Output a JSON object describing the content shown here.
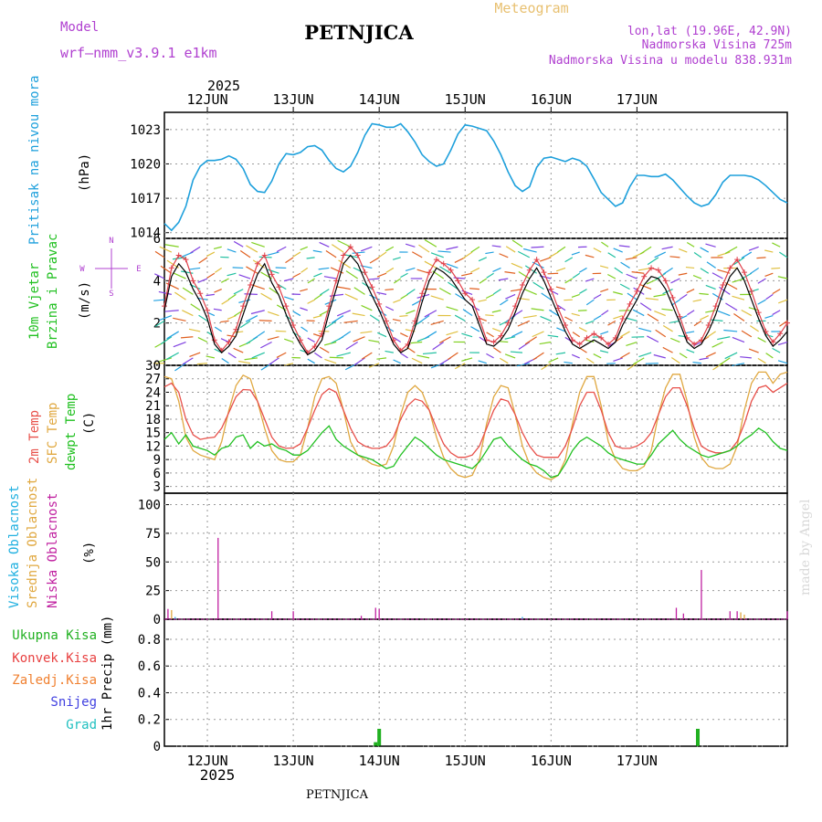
{
  "header": {
    "model_label": "Model",
    "model_name": "wrf—nmm_v3.9.1  e1km",
    "station": "PETNJICA",
    "meteogram_label": "Meteogram",
    "lonlat": "lon,lat (19.96E, 42.9N)",
    "elevation": "Nadmorska Visina 725m",
    "model_elevation": "Nadmorska Visina u modelu 838.931m",
    "year_top": "2025",
    "year_bottom": "2025",
    "footer_station": "PETNJICA",
    "credit": "made by Angel"
  },
  "colors": {
    "pressure": "#1ea0dc",
    "wind_speed": "#000000",
    "wind_gust": "#e0404a",
    "temp_2m": "#e8504a",
    "temp_sfc": "#e0a840",
    "dewpoint": "#20c020",
    "cloud_high": "#20b0e0",
    "cloud_mid": "#e0a840",
    "cloud_low": "#c020a0",
    "precip_total": "#20b020",
    "precip_conv": "#e84040",
    "precip_frozen": "#f08030",
    "snow": "#4040e0",
    "hail": "#20c0c0",
    "title_purple": "#b040d0"
  },
  "chart_data": [
    {
      "type": "line",
      "id": "pressure",
      "ylabel_side": "Pritisak na nivou mora",
      "unit": "(hPa)",
      "x_day_labels": [
        "12JUN",
        "13JUN",
        "14JUN",
        "15JUN",
        "16JUN",
        "17JUN"
      ],
      "yticks": [
        "1014",
        "1017",
        "1020",
        "1023"
      ],
      "ylim": [
        1013.5,
        1024.5
      ],
      "x_hours": [
        0,
        2,
        4,
        6,
        8,
        10,
        12,
        14,
        16,
        18,
        20,
        22,
        24,
        26,
        28,
        30,
        32,
        34,
        36,
        38,
        40,
        42,
        44,
        46,
        48,
        50,
        52,
        54,
        56,
        58,
        60,
        62,
        64,
        66,
        68,
        70,
        72,
        74,
        76,
        78,
        80,
        82,
        84,
        86,
        88,
        90,
        92,
        94,
        96,
        98,
        100,
        102,
        104,
        106,
        108,
        110,
        112,
        114,
        116,
        118,
        120,
        122,
        124,
        126,
        128,
        130,
        132,
        134,
        136,
        138,
        140,
        142,
        144,
        146,
        148,
        150,
        152,
        154,
        156,
        158,
        160,
        162,
        164,
        166,
        168,
        170,
        172,
        174
      ],
      "series": [
        {
          "values": [
            1014.8,
            1014.2,
            1014.9,
            1016.3,
            1018.6,
            1019.8,
            1020.3,
            1020.3,
            1020.4,
            1020.7,
            1020.4,
            1019.6,
            1018.2,
            1017.6,
            1017.5,
            1018.5,
            1020.0,
            1020.9,
            1020.8,
            1021.0,
            1021.5,
            1021.6,
            1021.2,
            1020.3,
            1019.6,
            1019.3,
            1019.8,
            1021.0,
            1022.5,
            1023.5,
            1023.4,
            1023.2,
            1023.2,
            1023.5,
            1022.8,
            1021.9,
            1020.8,
            1020.2,
            1019.8,
            1020.0,
            1021.2,
            1022.6,
            1023.4,
            1023.3,
            1023.1,
            1022.9,
            1022.0,
            1020.8,
            1019.3,
            1018.1,
            1017.6,
            1018.0,
            1019.7,
            1020.5,
            1020.6,
            1020.4,
            1020.2,
            1020.5,
            1020.3,
            1019.8,
            1018.7,
            1017.5,
            1016.9,
            1016.3,
            1016.6,
            1018.0,
            1019.0,
            1019.0,
            1018.9,
            1018.9,
            1019.1,
            1018.6,
            1017.9,
            1017.2,
            1016.6,
            1016.3,
            1016.5,
            1017.3,
            1018.4,
            1019.0,
            1019.0,
            1019.0,
            1018.9,
            1018.6,
            1018.1,
            1017.5,
            1016.9,
            1016.6
          ]
        }
      ]
    },
    {
      "type": "line",
      "id": "wind",
      "ylabel_side": [
        "10m Vjetar",
        "Brzina i Pravac"
      ],
      "unit": "(m/s)",
      "compass": {
        "n": "N",
        "s": "S",
        "e": "E",
        "w": "W"
      },
      "yticks": [
        "0",
        "2",
        "4",
        "6"
      ],
      "ylim": [
        0,
        6
      ],
      "x_hours": [
        0,
        2,
        4,
        6,
        8,
        10,
        12,
        14,
        16,
        18,
        20,
        22,
        24,
        26,
        28,
        30,
        32,
        34,
        36,
        38,
        40,
        42,
        44,
        46,
        48,
        50,
        52,
        54,
        56,
        58,
        60,
        62,
        64,
        66,
        68,
        70,
        72,
        74,
        76,
        78,
        80,
        82,
        84,
        86,
        88,
        90,
        92,
        94,
        96,
        98,
        100,
        102,
        104,
        106,
        108,
        110,
        112,
        114,
        116,
        118,
        120,
        122,
        124,
        126,
        128,
        130,
        132,
        134,
        136,
        138,
        140,
        142,
        144,
        146,
        148,
        150,
        152,
        154,
        156,
        158,
        160,
        162,
        164,
        166,
        168,
        170,
        172,
        174
      ],
      "series": [
        {
          "name": "speed",
          "values": [
            2.6,
            4.2,
            4.8,
            4.4,
            3.6,
            3.0,
            2.2,
            1.0,
            0.6,
            0.9,
            1.4,
            2.4,
            3.4,
            4.3,
            4.8,
            3.9,
            3.3,
            2.4,
            1.6,
            1.0,
            0.5,
            0.7,
            1.2,
            2.5,
            3.6,
            4.8,
            5.2,
            4.8,
            4.0,
            3.3,
            2.6,
            1.8,
            1.0,
            0.6,
            0.8,
            1.8,
            3.0,
            4.0,
            4.6,
            4.4,
            4.1,
            3.6,
            3.1,
            2.8,
            1.9,
            1.0,
            0.9,
            1.2,
            1.7,
            2.5,
            3.4,
            4.1,
            4.6,
            4.0,
            3.2,
            2.4,
            1.6,
            1.0,
            0.8,
            1.0,
            1.2,
            1.0,
            0.8,
            1.1,
            1.9,
            2.5,
            3.1,
            3.8,
            4.2,
            4.1,
            3.6,
            2.8,
            2.0,
            1.1,
            0.8,
            1.0,
            1.6,
            2.4,
            3.4,
            4.2,
            4.6,
            4.0,
            3.1,
            2.2,
            1.4,
            0.9,
            1.2,
            1.6
          ]
        },
        {
          "name": "gust",
          "values": [
            2.8,
            4.6,
            5.2,
            5.0,
            4.0,
            3.4,
            2.6,
            1.2,
            0.7,
            1.1,
            1.7,
            2.8,
            3.8,
            4.8,
            5.2,
            4.3,
            3.7,
            2.8,
            1.9,
            1.2,
            0.6,
            0.9,
            1.5,
            2.8,
            4.0,
            5.2,
            5.6,
            5.2,
            4.4,
            3.7,
            2.9,
            2.1,
            1.2,
            0.7,
            1.0,
            2.1,
            3.4,
            4.4,
            5.0,
            4.8,
            4.5,
            4.0,
            3.4,
            3.1,
            2.2,
            1.2,
            1.1,
            1.4,
            2.0,
            2.8,
            3.8,
            4.5,
            5.0,
            4.4,
            3.6,
            2.7,
            1.9,
            1.2,
            1.0,
            1.3,
            1.5,
            1.3,
            1.0,
            1.3,
            2.2,
            2.9,
            3.5,
            4.2,
            4.6,
            4.5,
            4.0,
            3.2,
            2.3,
            1.3,
            1.0,
            1.2,
            1.9,
            2.8,
            3.8,
            4.6,
            5.0,
            4.4,
            3.5,
            2.5,
            1.6,
            1.1,
            1.5,
            2.0
          ]
        }
      ]
    },
    {
      "type": "line",
      "id": "temperature",
      "ylabel_side": [
        "2m Temp",
        "SFC Temp",
        "dewpt Temp"
      ],
      "unit": "(C)",
      "yticks": [
        "3",
        "6",
        "9",
        "12",
        "15",
        "18",
        "21",
        "24",
        "27",
        "30"
      ],
      "ylim": [
        1.5,
        30
      ],
      "x_hours": [
        0,
        2,
        4,
        6,
        8,
        10,
        12,
        14,
        16,
        18,
        20,
        22,
        24,
        26,
        28,
        30,
        32,
        34,
        36,
        38,
        40,
        42,
        44,
        46,
        48,
        50,
        52,
        54,
        56,
        58,
        60,
        62,
        64,
        66,
        68,
        70,
        72,
        74,
        76,
        78,
        80,
        82,
        84,
        86,
        88,
        90,
        92,
        94,
        96,
        98,
        100,
        102,
        104,
        106,
        108,
        110,
        112,
        114,
        116,
        118,
        120,
        122,
        124,
        126,
        128,
        130,
        132,
        134,
        136,
        138,
        140,
        142,
        144,
        146,
        148,
        150,
        152,
        154,
        156,
        158,
        160,
        162,
        164,
        166,
        168,
        170,
        172,
        174
      ],
      "series": [
        {
          "name": "2m Temp",
          "values": [
            25.2,
            26.0,
            24.0,
            18.0,
            14.5,
            13.5,
            13.8,
            14.0,
            16.0,
            19.5,
            23.0,
            24.6,
            24.5,
            22.0,
            18.0,
            14.0,
            12.0,
            11.5,
            11.6,
            12.5,
            16.0,
            20.0,
            23.5,
            24.8,
            24.0,
            20.0,
            16.0,
            13.0,
            12.0,
            11.5,
            11.5,
            12.0,
            14.0,
            18.0,
            21.0,
            22.5,
            22.0,
            20.0,
            16.0,
            12.5,
            10.5,
            9.5,
            9.5,
            10.0,
            12.0,
            16.0,
            20.0,
            22.5,
            22.0,
            19.0,
            15.0,
            12.0,
            10.0,
            9.5,
            9.5,
            9.5,
            12.0,
            16.0,
            21.0,
            24.0,
            24.0,
            20.0,
            15.0,
            12.0,
            11.5,
            11.5,
            12.0,
            13.0,
            15.0,
            19.0,
            23.0,
            25.0,
            25.0,
            21.0,
            16.0,
            12.0,
            11.0,
            10.5,
            10.5,
            11.0,
            13.0,
            17.0,
            22.0,
            25.0,
            25.5,
            24.0,
            25.0,
            26.0
          ]
        },
        {
          "name": "SFC Temp",
          "values": [
            27.5,
            27.0,
            22.0,
            14.0,
            11.0,
            10.0,
            9.5,
            9.0,
            13.0,
            20.0,
            25.5,
            27.8,
            27.0,
            22.0,
            16.0,
            11.0,
            9.0,
            8.5,
            8.5,
            10.0,
            16.0,
            23.0,
            27.0,
            27.5,
            26.0,
            20.0,
            13.0,
            10.0,
            9.0,
            8.0,
            7.5,
            8.0,
            12.0,
            19.0,
            24.0,
            25.5,
            24.0,
            20.0,
            14.0,
            9.5,
            7.0,
            5.5,
            5.0,
            5.5,
            9.0,
            17.0,
            23.0,
            25.5,
            25.0,
            19.0,
            12.0,
            8.0,
            6.0,
            5.0,
            4.5,
            5.5,
            9.0,
            17.0,
            24.0,
            27.5,
            27.5,
            21.0,
            13.0,
            9.0,
            7.0,
            6.5,
            6.5,
            7.5,
            11.0,
            19.0,
            25.0,
            28.0,
            28.0,
            22.0,
            14.0,
            9.5,
            7.5,
            7.0,
            7.0,
            8.0,
            12.0,
            20.0,
            26.0,
            28.5,
            28.5,
            26.0,
            28.0,
            28.5
          ]
        },
        {
          "name": "dewpt Temp",
          "values": [
            13.5,
            15.0,
            12.5,
            14.5,
            12.0,
            11.5,
            11.0,
            10.0,
            11.5,
            12.0,
            14.0,
            14.5,
            11.5,
            13.0,
            12.0,
            12.5,
            11.5,
            11.0,
            10.0,
            10.0,
            11.0,
            13.0,
            15.0,
            16.5,
            13.5,
            12.0,
            11.0,
            10.0,
            9.5,
            9.0,
            8.0,
            7.0,
            7.5,
            10.0,
            12.0,
            14.0,
            13.0,
            11.5,
            10.0,
            9.0,
            8.5,
            8.0,
            7.5,
            7.0,
            8.5,
            11.0,
            13.5,
            14.0,
            12.0,
            10.5,
            9.0,
            8.0,
            7.5,
            6.5,
            5.0,
            5.5,
            8.0,
            11.0,
            13.0,
            14.0,
            13.0,
            12.0,
            10.5,
            9.5,
            9.0,
            8.5,
            8.0,
            8.0,
            10.0,
            12.5,
            14.0,
            15.5,
            13.5,
            12.0,
            11.0,
            10.0,
            9.5,
            10.0,
            10.5,
            11.0,
            12.0,
            13.5,
            14.5,
            16.0,
            15.0,
            13.0,
            11.5,
            11.0
          ]
        }
      ]
    },
    {
      "type": "bar",
      "id": "clouds",
      "ylabel_side": [
        "Visoka Oblacnost",
        "Srednja Oblacnost",
        "Niska Oblacnost"
      ],
      "unit": "(%)",
      "yticks": [
        "0",
        "25",
        "50",
        "75",
        "100"
      ],
      "ylim": [
        0,
        110
      ],
      "series": [
        {
          "name": "Niska Oblacnost",
          "bars": [
            {
              "x": 1,
              "v": 9
            },
            {
              "x": 15,
              "v": 71
            },
            {
              "x": 30,
              "v": 7
            },
            {
              "x": 36,
              "v": 7
            },
            {
              "x": 55,
              "v": 3
            },
            {
              "x": 59,
              "v": 10
            },
            {
              "x": 60,
              "v": 9
            },
            {
              "x": 143,
              "v": 10
            },
            {
              "x": 145,
              "v": 5
            },
            {
              "x": 150,
              "v": 43
            },
            {
              "x": 158,
              "v": 7
            },
            {
              "x": 160,
              "v": 7
            },
            {
              "x": 174,
              "v": 7
            }
          ]
        },
        {
          "name": "Srednja Oblacnost",
          "bars": [
            {
              "x": 2,
              "v": 8
            },
            {
              "x": 161,
              "v": 6
            },
            {
              "x": 162,
              "v": 4
            }
          ]
        },
        {
          "name": "Visoka Oblacnost",
          "bars": [
            {
              "x": 3,
              "v": 2
            },
            {
              "x": 100,
              "v": 2
            }
          ]
        }
      ]
    },
    {
      "type": "bar",
      "id": "precipitation",
      "ylabel_side": "1hr Precip (mm)",
      "legend": [
        "Ukupna Kisa",
        "Konvek.Kisa",
        "Zaledj.Kisa",
        "Snijeg",
        "Grad"
      ],
      "yticks": [
        "0",
        "0.2",
        "0.4",
        "0.6",
        "0.8"
      ],
      "ylim": [
        0,
        0.95
      ],
      "x_day_labels": [
        "12JUN",
        "13JUN",
        "14JUN",
        "15JUN",
        "16JUN",
        "17JUN"
      ],
      "series": [
        {
          "name": "Ukupna Kisa",
          "bars": [
            {
              "x": 59,
              "v": 0.03
            },
            {
              "x": 60,
              "v": 0.13
            },
            {
              "x": 149,
              "v": 0.13
            }
          ]
        }
      ]
    }
  ]
}
